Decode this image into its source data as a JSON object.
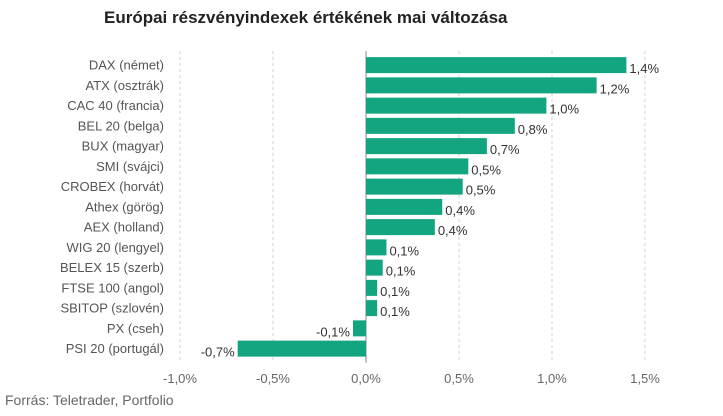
{
  "title": "Európai részvényindexek értékének mai változása",
  "source": "Forrás: Teletrader, Portfolio",
  "colors": {
    "bar": "#12a57f",
    "grid": "#d0d0d0",
    "zero_line": "#888888"
  },
  "chart_data": {
    "type": "bar",
    "orientation": "horizontal",
    "title": "Európai részvényindexek értékének mai változása",
    "categories": [
      "DAX (német)",
      "ATX (osztrák)",
      "CAC 40 (francia)",
      "BEL 20 (belga)",
      "BUX (magyar)",
      "SMI (svájci)",
      "CROBEX (horvát)",
      "Athex (görög)",
      "AEX (holland)",
      "WIG 20 (lengyel)",
      "BELEX 15 (szerb)",
      "FTSE 100 (angol)",
      "SBITOP (szlovén)",
      "PX (cseh)",
      "PSI 20 (portugál)"
    ],
    "values": [
      1.4,
      1.24,
      0.97,
      0.8,
      0.65,
      0.55,
      0.52,
      0.41,
      0.37,
      0.11,
      0.09,
      0.06,
      0.06,
      -0.07,
      -0.69
    ],
    "value_labels": [
      "1,4%",
      "1,2%",
      "1,0%",
      "0,8%",
      "0,7%",
      "0,5%",
      "0,5%",
      "0,4%",
      "0,4%",
      "0,1%",
      "0,1%",
      "0,1%",
      "0,1%",
      "-0,1%",
      "-0,7%"
    ],
    "xlim": [
      -1.0,
      1.5
    ],
    "xticks": [
      -1.0,
      -0.5,
      0.0,
      0.5,
      1.0,
      1.5
    ],
    "xtick_labels": [
      "-1,0%",
      "-0,5%",
      "0,0%",
      "0,5%",
      "1,0%",
      "1,5%"
    ],
    "grid": "vertical dashed",
    "legend": "none"
  }
}
